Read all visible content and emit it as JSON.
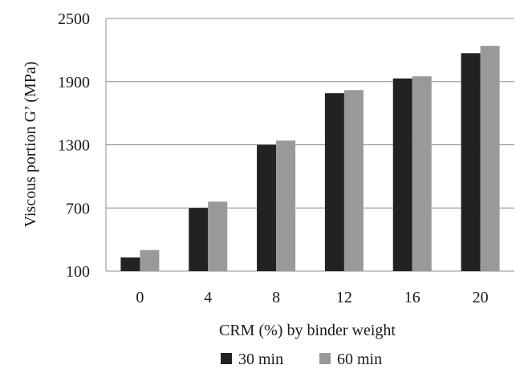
{
  "chart_data": {
    "type": "bar",
    "title": "",
    "xlabel": "CRM (%) by binder weight",
    "ylabel": "Viscous portion G’ (MPa)",
    "categories": [
      "0",
      "4",
      "8",
      "12",
      "16",
      "20"
    ],
    "series": [
      {
        "name": "30 min",
        "values": [
          230,
          700,
          1300,
          1790,
          1930,
          2170
        ],
        "color": "#222222"
      },
      {
        "name": "60 min",
        "values": [
          300,
          760,
          1340,
          1820,
          1950,
          2240
        ],
        "color": "#999999"
      }
    ],
    "ylim": [
      100,
      2500
    ],
    "yticks": [
      "100",
      "700",
      "1300",
      "1900",
      "2500"
    ],
    "grid": true,
    "legend_position": "bottom-center"
  }
}
